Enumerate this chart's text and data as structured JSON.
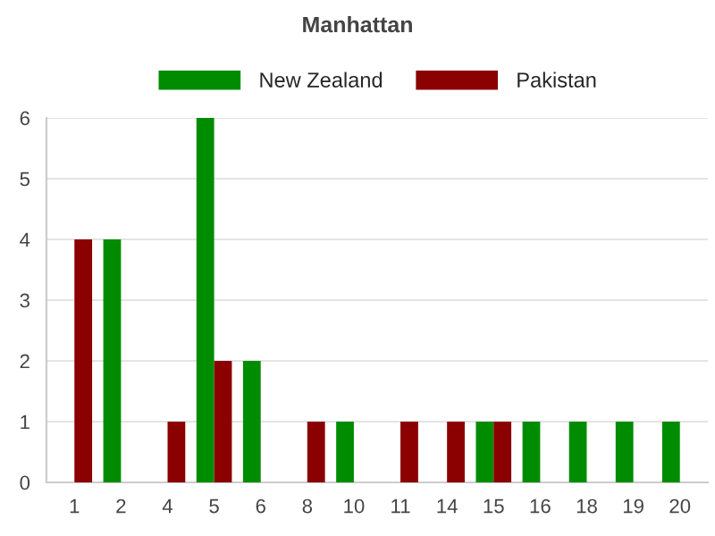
{
  "chart_data": {
    "type": "bar",
    "title": "Manhattan",
    "categories": [
      "1",
      "2",
      "4",
      "5",
      "6",
      "8",
      "10",
      "11",
      "14",
      "15",
      "16",
      "18",
      "19",
      "20"
    ],
    "series": [
      {
        "name": "New Zealand",
        "color": "#008c00",
        "values": [
          null,
          4,
          null,
          6,
          2,
          null,
          1,
          null,
          null,
          1,
          1,
          1,
          1,
          1
        ]
      },
      {
        "name": "Pakistan",
        "color": "#8b0000",
        "values": [
          4,
          null,
          1,
          2,
          null,
          1,
          null,
          1,
          1,
          1,
          null,
          null,
          null,
          null
        ]
      }
    ],
    "ylim": [
      0,
      6
    ],
    "yticks": [
      0,
      1,
      2,
      3,
      4,
      5,
      6
    ],
    "grid": "y",
    "legend": "top"
  }
}
